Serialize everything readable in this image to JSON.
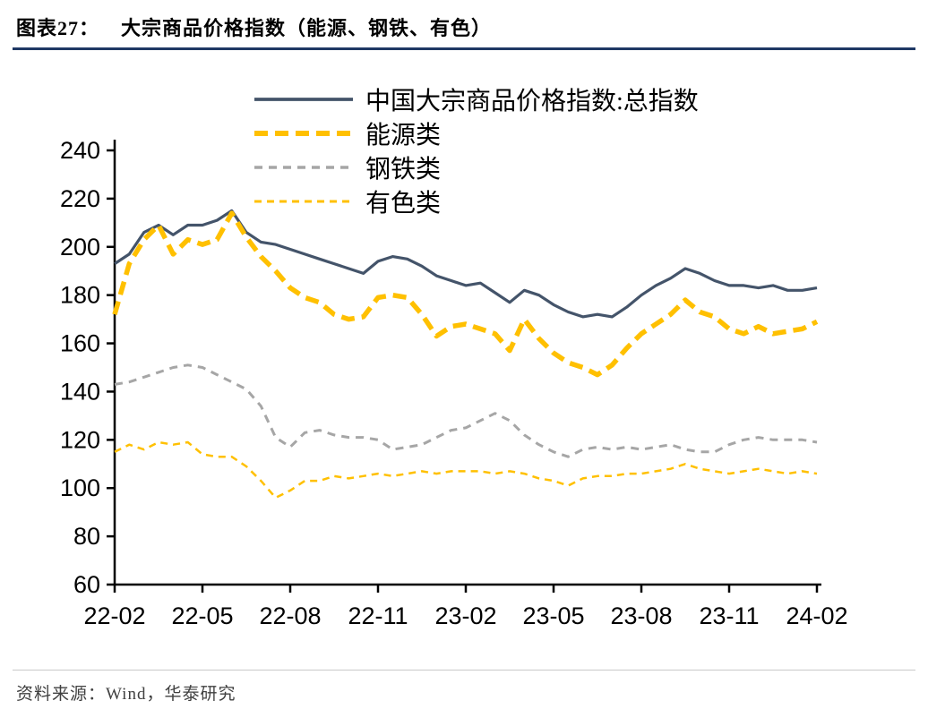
{
  "page": {
    "title_prefix": "图表27：",
    "title": "大宗商品价格指数（能源、钢铁、有色）",
    "source": "资料来源：Wind，华泰研究",
    "accent_color": "#1F3864"
  },
  "chart_data": {
    "type": "line",
    "title": "大宗商品价格指数（能源、钢铁、有色）",
    "xlabel": "",
    "ylabel": "",
    "xlim": [
      0,
      24
    ],
    "ylim": [
      60,
      240
    ],
    "grid": false,
    "legend_position": "top",
    "x_unit": "months since 2022-02",
    "x_tick_positions": [
      0,
      3,
      6,
      9,
      12,
      15,
      18,
      21,
      24
    ],
    "x_tick_labels": [
      "22-02",
      "22-05",
      "22-08",
      "22-11",
      "23-02",
      "23-05",
      "23-08",
      "23-11",
      "24-02"
    ],
    "y_ticks": [
      60,
      80,
      100,
      120,
      140,
      160,
      180,
      200,
      220,
      240
    ],
    "x": [
      0,
      0.5,
      1,
      1.5,
      2,
      2.5,
      3,
      3.5,
      4,
      4.5,
      5,
      5.5,
      6,
      6.5,
      7,
      7.5,
      8,
      8.5,
      9,
      9.5,
      10,
      10.5,
      11,
      11.5,
      12,
      12.5,
      13,
      13.5,
      14,
      14.5,
      15,
      15.5,
      16,
      16.5,
      17,
      17.5,
      18,
      18.5,
      19,
      19.5,
      20,
      20.5,
      21,
      21.5,
      22,
      22.5,
      23,
      23.5,
      24
    ],
    "series": [
      {
        "name": "中国大宗商品价格指数:总指数",
        "color": "#44546A",
        "dasharray": "",
        "width": 3.2,
        "values": [
          193,
          197,
          206,
          209,
          205,
          209,
          209,
          211,
          215,
          206,
          202,
          201,
          199,
          197,
          195,
          193,
          191,
          189,
          194,
          196,
          195,
          192,
          188,
          186,
          184,
          185,
          181,
          177,
          182,
          180,
          176,
          173,
          171,
          172,
          171,
          175,
          180,
          184,
          187,
          191,
          189,
          186,
          184,
          184,
          183,
          184,
          182,
          182,
          183
        ]
      },
      {
        "name": "能源类",
        "color": "#FFC000",
        "dasharray": "15 8",
        "width": 5.5,
        "values": [
          172,
          193,
          203,
          209,
          197,
          203,
          201,
          203,
          214,
          204,
          196,
          190,
          183,
          179,
          177,
          172,
          170,
          171,
          179,
          180,
          179,
          172,
          163,
          167,
          168,
          166,
          164,
          157,
          170,
          162,
          156,
          152,
          150,
          147,
          151,
          158,
          164,
          168,
          172,
          178,
          173,
          171,
          166,
          164,
          167,
          164,
          165,
          166,
          169
        ]
      },
      {
        "name": "钢铁类",
        "color": "#A6A6A6",
        "dasharray": "9 7",
        "width": 3,
        "values": [
          143,
          144,
          146,
          148,
          150,
          151,
          150,
          147,
          144,
          141,
          134,
          121,
          117,
          123,
          124,
          122,
          121,
          121,
          120,
          116,
          117,
          118,
          121,
          124,
          125,
          128,
          131,
          128,
          122,
          118,
          115,
          113,
          116,
          117,
          116,
          117,
          116,
          117,
          118,
          116,
          115,
          115,
          118,
          120,
          121,
          120,
          120,
          120,
          119
        ]
      },
      {
        "name": "有色类",
        "color": "#FFC000",
        "dasharray": "8 6",
        "width": 2.5,
        "values": [
          115,
          118,
          116,
          119,
          118,
          119,
          114,
          113,
          113,
          109,
          103,
          96,
          99,
          103,
          103,
          105,
          104,
          105,
          106,
          105,
          106,
          107,
          106,
          107,
          107,
          107,
          106,
          107,
          106,
          104,
          103,
          101,
          104,
          105,
          105,
          106,
          106,
          107,
          108,
          110,
          108,
          107,
          106,
          107,
          108,
          107,
          106,
          107,
          106
        ]
      }
    ]
  }
}
